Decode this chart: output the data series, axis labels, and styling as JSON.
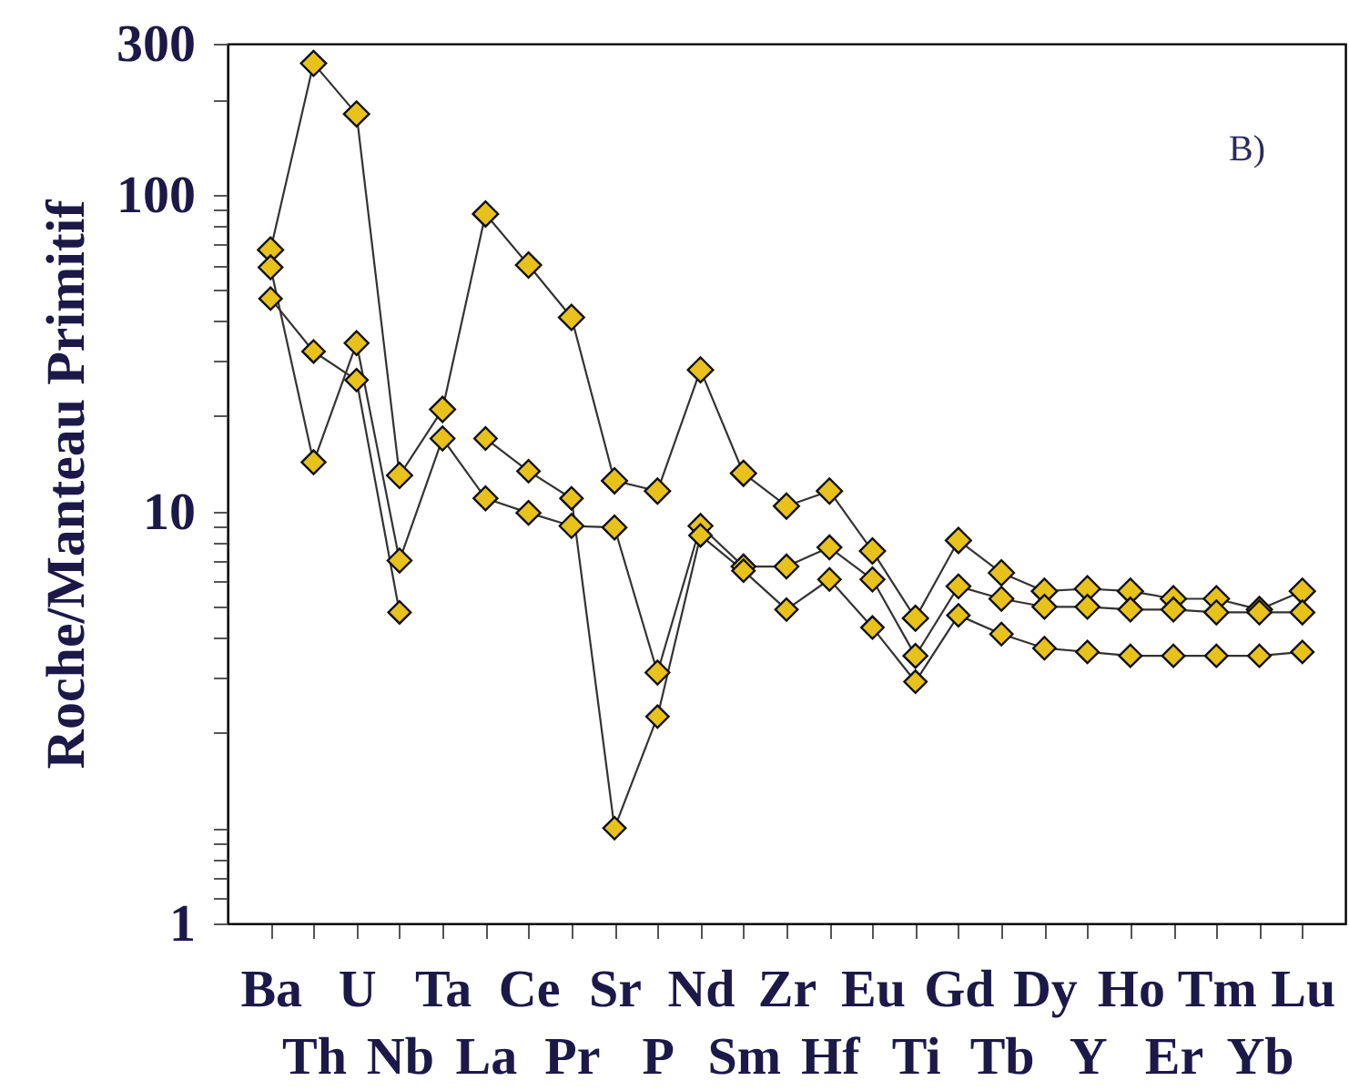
{
  "chart_data": {
    "type": "line",
    "ylabel": "Roche/Manteau Primitif",
    "annotations": [
      "B)"
    ],
    "categories": [
      "Ba",
      "Th",
      "U",
      "Nb",
      "Ta",
      "La",
      "Ce",
      "Pr",
      "Sr",
      "P",
      "Nd",
      "Sm",
      "Zr",
      "Hf",
      "Eu",
      "Ti",
      "Gd",
      "Tb",
      "Dy",
      "Y",
      "Ho",
      "Er",
      "Tm",
      "Yb",
      "Lu"
    ],
    "series": [
      {
        "color": "#e8c21a",
        "values": [
          67,
          260,
          180,
          13,
          21,
          87,
          60,
          41,
          12.5,
          11.6,
          28,
          13.2,
          10.4,
          11.6,
          7.5,
          4.6,
          8.1,
          6.4,
          5.6,
          5.7,
          5.6,
          5.3,
          5.3,
          4.9,
          5.6
        ]
      },
      {
        "color": "#e8c21a",
        "values": [
          59,
          14.3,
          34,
          7.0,
          17,
          11,
          9.9,
          9.0,
          8.9,
          3.1,
          9.0,
          6.7,
          6.7,
          7.7,
          6.1,
          3.5,
          5.8,
          5.3,
          5.0,
          5.0,
          4.9,
          4.9,
          4.8,
          4.8,
          4.8
        ]
      },
      {
        "color": "#e8c21a",
        "values": [
          47,
          32,
          26,
          4.8,
          null,
          17,
          13.4,
          11,
          1.0,
          2.25,
          8.4,
          6.5,
          4.9,
          6.1,
          4.3,
          2.9,
          4.7,
          4.1,
          3.7,
          3.6,
          3.5,
          3.5,
          3.5,
          3.5,
          3.6
        ]
      }
    ],
    "log": "y",
    "ylim": [
      0.5,
      300
    ],
    "yticks": [
      {
        "value": 0.5,
        "label": "1"
      },
      {
        "value": 0.6,
        "label": null
      },
      {
        "value": 0.7,
        "label": null
      },
      {
        "value": 0.8,
        "label": null
      },
      {
        "value": 0.9,
        "label": null
      },
      {
        "value": 1,
        "label": null
      },
      {
        "value": 2,
        "label": null
      },
      {
        "value": 3,
        "label": null
      },
      {
        "value": 4,
        "label": null
      },
      {
        "value": 5,
        "label": null
      },
      {
        "value": 6,
        "label": null
      },
      {
        "value": 7,
        "label": null
      },
      {
        "value": 8,
        "label": null
      },
      {
        "value": 9,
        "label": null
      },
      10,
      {
        "value": 20,
        "label": null
      },
      {
        "value": 30,
        "label": null
      },
      {
        "value": 40,
        "label": null
      },
      {
        "value": 50,
        "label": null
      },
      {
        "value": 60,
        "label": null
      },
      {
        "value": 70,
        "label": null
      },
      {
        "value": 80,
        "label": null
      },
      {
        "value": 90,
        "label": null
      },
      100,
      {
        "value": 200,
        "label": null
      },
      300
    ],
    "grid": false,
    "marker": "diamond",
    "line_style": "solid"
  }
}
